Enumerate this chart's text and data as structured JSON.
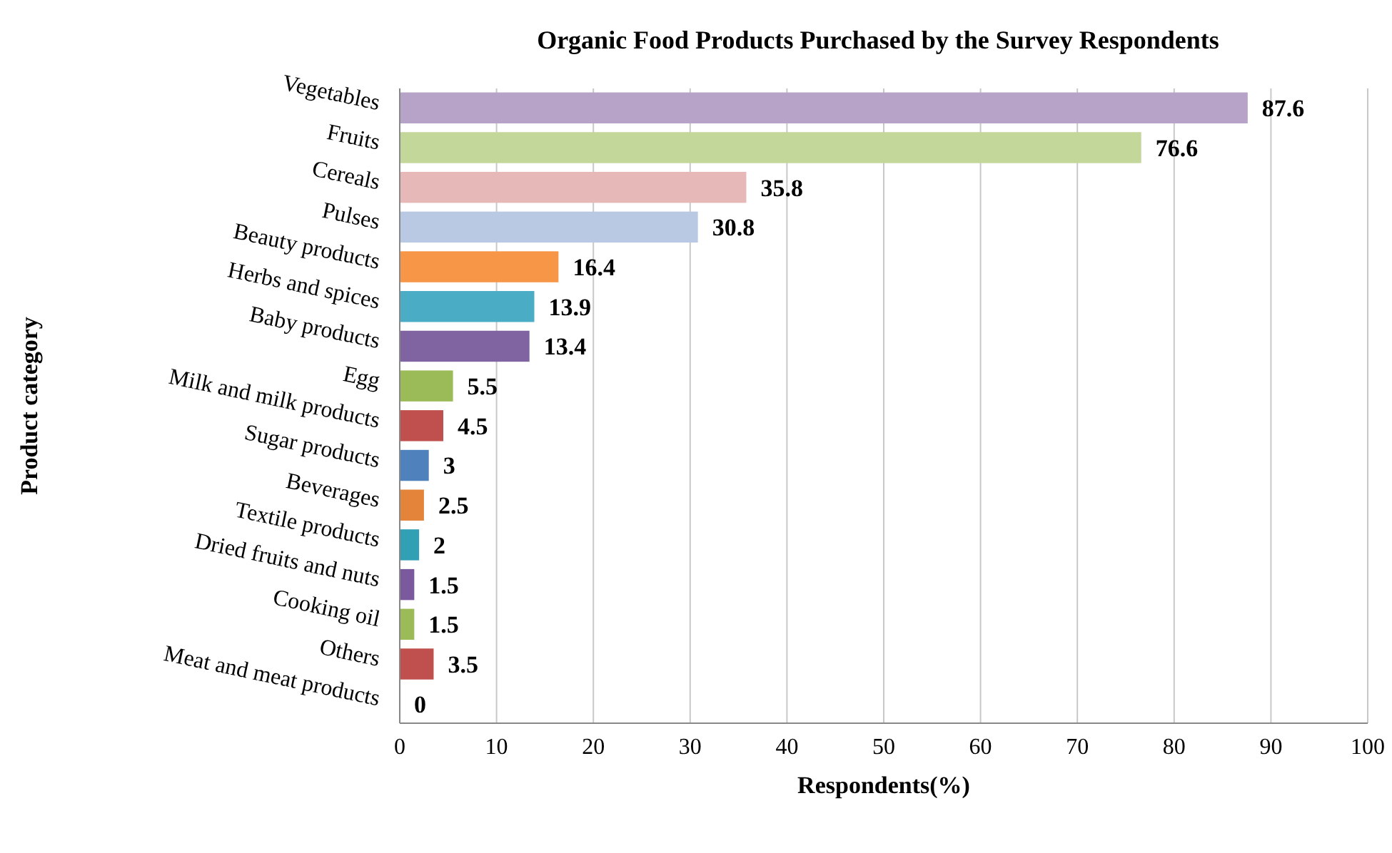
{
  "chart_data": {
    "type": "bar",
    "orientation": "horizontal",
    "title": "Organic Food Products Purchased by the  Survey  Respondents",
    "xlabel": "Respondents(%)",
    "ylabel": "Product category",
    "categories": [
      "Vegetables",
      "Fruits",
      "Cereals",
      "Pulses",
      "Beauty products",
      "Herbs and spices",
      "Baby products",
      "Egg",
      "Milk and milk products",
      "Sugar products",
      "Beverages",
      "Textile products",
      "Dried fruits and nuts",
      "Cooking oil",
      "Others",
      "Meat and meat products"
    ],
    "values": [
      87.6,
      76.6,
      35.8,
      30.8,
      16.4,
      13.9,
      13.4,
      5.5,
      4.5,
      3,
      2.5,
      2,
      1.5,
      1.5,
      3.5,
      0
    ],
    "colors": [
      "#b8a3c8",
      "#c4d79b",
      "#e6b9b8",
      "#b9c9e3",
      "#f79646",
      "#4bacc6",
      "#8064a2",
      "#9bbb59",
      "#c0504d",
      "#4f81bd",
      "#e3843a",
      "#31a0b5",
      "#7a5a9c",
      "#9bbb59",
      "#c0504d",
      "#c0504d"
    ],
    "xlim": [
      0,
      100
    ],
    "xticks": [
      0,
      10,
      20,
      30,
      40,
      50,
      60,
      70,
      80,
      90,
      100
    ],
    "grid": "x",
    "data_labels": true
  }
}
